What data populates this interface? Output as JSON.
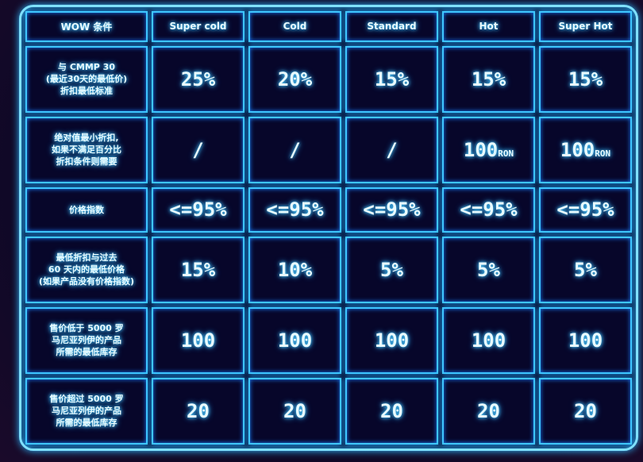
{
  "header": [
    "WOW 条件",
    "Super cold",
    "Cold",
    "Standard",
    "Hot",
    "Super Hot"
  ],
  "rows": [
    {
      "label": "与 CMMP 30\n(最近30天的最低价)\n折扣最低标准",
      "values": [
        "25%",
        "20%",
        "15%",
        "15%",
        "15%"
      ]
    },
    {
      "label": "绝对值最小折扣,\n如果不满足百分比\n折扣条件则需要",
      "values": [
        "/",
        "/",
        "/",
        "100",
        "100"
      ],
      "units": [
        "",
        "",
        "",
        "RON",
        "RON"
      ]
    },
    {
      "label": "价格指数",
      "values": [
        "<=95%",
        "<=95%",
        "<=95%",
        "<=95%",
        "<=95%"
      ]
    },
    {
      "label": "最低折扣与过去\n60 天内的最低价格\n(如果产品没有价格指数)",
      "values": [
        "15%",
        "10%",
        "5%",
        "5%",
        "5%"
      ]
    },
    {
      "label": "售价低于 5000 罗\n马尼亚列伊的产品\n所需的最低库存",
      "values": [
        "100",
        "100",
        "100",
        "100",
        "100"
      ]
    },
    {
      "label": "售价超过 5000 罗\n马尼亚列伊的产品\n所需的最低库存",
      "values": [
        "20",
        "20",
        "20",
        "20",
        "20"
      ]
    }
  ],
  "colors": {
    "neon": "#3fc6ff",
    "cell": "#07062a"
  }
}
